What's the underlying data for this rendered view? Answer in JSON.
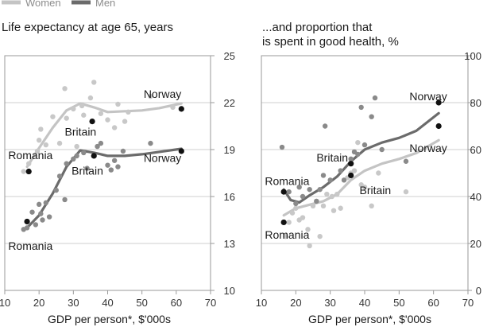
{
  "legend": [
    {
      "label": "Women",
      "color": "#c4c4c4"
    },
    {
      "label": "Men",
      "color": "#6b6b6b"
    }
  ],
  "colors": {
    "women_line": "#c4c4c4",
    "men_line": "#6b6b6b",
    "women_dot": "#c8c8c8",
    "men_dot": "#8a8a8a",
    "highlight_dot": "#111111",
    "grid": "#cfcfcf"
  },
  "chart_data": [
    {
      "type": "scatter",
      "title": "Life expectancy at age 65, years",
      "xlabel": "GDP per person*, $'000s",
      "ylabel": "",
      "xlim": [
        10,
        70
      ],
      "ylim": [
        10,
        25
      ],
      "x_ticks": [
        "10",
        "20",
        "30",
        "40",
        "50",
        "60",
        "70"
      ],
      "y_ticks": [
        "10",
        "13",
        "16",
        "19",
        "22",
        "25"
      ],
      "grid": true,
      "y_axis_side": "right",
      "series": [
        {
          "name": "Women",
          "color": "#c8c8c8",
          "points": [
            [
              15.5,
              17.6
            ],
            [
              17.0,
              18.1
            ],
            [
              19.5,
              18.9
            ],
            [
              20.0,
              19.6
            ],
            [
              20.5,
              20.3
            ],
            [
              22.0,
              19.3
            ],
            [
              24.0,
              21.1
            ],
            [
              26.0,
              19.4
            ],
            [
              27.5,
              22.9
            ],
            [
              28.0,
              21.0
            ],
            [
              30.0,
              21.6
            ],
            [
              31.0,
              19.2
            ],
            [
              32.5,
              21.8
            ],
            [
              33.0,
              21.2
            ],
            [
              35.0,
              22.3
            ],
            [
              36.0,
              23.3
            ],
            [
              38.0,
              21.3
            ],
            [
              40.0,
              20.9
            ],
            [
              42.0,
              20.4
            ],
            [
              43.0,
              21.9
            ],
            [
              45.0,
              20.8
            ],
            [
              46.0,
              21.4
            ],
            [
              52.5,
              22.4
            ],
            [
              59.0,
              21.7
            ]
          ],
          "trend": [
            [
              16.5,
              17.9
            ],
            [
              20,
              19.1
            ],
            [
              24,
              20.4
            ],
            [
              28,
              21.5
            ],
            [
              32,
              21.95
            ],
            [
              36,
              21.7
            ],
            [
              40,
              21.4
            ],
            [
              45,
              21.45
            ],
            [
              50,
              21.5
            ],
            [
              55,
              21.65
            ],
            [
              61.5,
              21.95
            ]
          ]
        },
        {
          "name": "Men",
          "color": "#8a8a8a",
          "points": [
            [
              15.5,
              13.9
            ],
            [
              16.5,
              14.0
            ],
            [
              18.0,
              15.0
            ],
            [
              19.0,
              14.2
            ],
            [
              20.0,
              15.5
            ],
            [
              20.5,
              14.9
            ],
            [
              21.0,
              14.5
            ],
            [
              22.0,
              15.6
            ],
            [
              23.0,
              14.7
            ],
            [
              25.0,
              16.4
            ],
            [
              26.0,
              17.3
            ],
            [
              27.5,
              15.8
            ],
            [
              28.0,
              18.1
            ],
            [
              30.0,
              18.4
            ],
            [
              31.0,
              18.6
            ],
            [
              33.0,
              18.8
            ],
            [
              34.0,
              17.8
            ],
            [
              36.0,
              18.6
            ],
            [
              37.0,
              19.2
            ],
            [
              38.0,
              19.4
            ],
            [
              40.0,
              18.0
            ],
            [
              41.0,
              17.7
            ],
            [
              42.0,
              18.3
            ],
            [
              43.0,
              17.9
            ],
            [
              44.5,
              18.9
            ],
            [
              52.5,
              19.4
            ]
          ],
          "trend": [
            [
              16.5,
              14.0
            ],
            [
              20,
              14.8
            ],
            [
              24,
              16.2
            ],
            [
              28,
              17.9
            ],
            [
              32,
              18.95
            ],
            [
              36,
              18.8
            ],
            [
              40,
              18.6
            ],
            [
              45,
              18.6
            ],
            [
              50,
              18.7
            ],
            [
              55,
              18.85
            ],
            [
              61.5,
              19.05
            ]
          ]
        }
      ],
      "highlighted": [
        {
          "label": "Norway",
          "series": "Women",
          "x": 61.5,
          "y": 21.6
        },
        {
          "label": "Britain",
          "series": "Women",
          "x": 35.5,
          "y": 20.8
        },
        {
          "label": "Romania",
          "series": "Women",
          "x": 17.0,
          "y": 17.6
        },
        {
          "label": "Norway",
          "series": "Men",
          "x": 61.5,
          "y": 18.9
        },
        {
          "label": "Britain",
          "series": "Men",
          "x": 36.0,
          "y": 18.6
        },
        {
          "label": "Romania",
          "series": "Men",
          "x": 16.5,
          "y": 14.4
        }
      ],
      "annotations": [
        {
          "text": "Norway",
          "x": 50.5,
          "y": 22.3
        },
        {
          "text": "Britain",
          "x": 27.5,
          "y": 19.9
        },
        {
          "text": "Romania",
          "x": 11.0,
          "y": 18.4
        },
        {
          "text": "Norway",
          "x": 50.5,
          "y": 18.2
        },
        {
          "text": "Britain",
          "x": 29.5,
          "y": 17.4
        },
        {
          "text": "Romania",
          "x": 11.0,
          "y": 12.6
        }
      ]
    },
    {
      "type": "scatter",
      "title": "...and proportion that\nis spent in good health, %",
      "xlabel": "GDP per person*, $'000s",
      "ylabel": "",
      "xlim": [
        10,
        70
      ],
      "ylim": [
        0,
        100
      ],
      "x_ticks": [
        "10",
        "20",
        "30",
        "40",
        "50",
        "60",
        "70"
      ],
      "y_ticks": [
        "0",
        "20",
        "40",
        "60",
        "80",
        "100"
      ],
      "grid": true,
      "y_axis_side": "right",
      "series": [
        {
          "name": "Women",
          "color": "#c8c8c8",
          "points": [
            [
              17.0,
              23.0
            ],
            [
              18.0,
              29.0
            ],
            [
              19.0,
              33.0
            ],
            [
              20.0,
              35.0
            ],
            [
              21.0,
              30.0
            ],
            [
              22.0,
              31.0
            ],
            [
              23.5,
              26.0
            ],
            [
              24.0,
              19.0
            ],
            [
              25.0,
              36.0
            ],
            [
              26.0,
              38.0
            ],
            [
              27.0,
              23.0
            ],
            [
              28.0,
              36.0
            ],
            [
              29.0,
              41.0
            ],
            [
              30.5,
              40.0
            ],
            [
              31.0,
              34.0
            ],
            [
              32.0,
              41.0
            ],
            [
              33.0,
              35.0
            ],
            [
              35.0,
              48.0
            ],
            [
              36.0,
              50.0
            ],
            [
              37.0,
              51.0
            ],
            [
              38.0,
              63.0
            ],
            [
              39.0,
              45.0
            ],
            [
              40.0,
              44.0
            ],
            [
              42.0,
              36.0
            ],
            [
              44.0,
              50.0
            ],
            [
              52.0,
              42.0
            ]
          ],
          "trend": [
            [
              16.5,
              32.0
            ],
            [
              20,
              35.0
            ],
            [
              24,
              36.5
            ],
            [
              28,
              38.0
            ],
            [
              32,
              41.0
            ],
            [
              36,
              47.0
            ],
            [
              40,
              51.0
            ],
            [
              45,
              54.0
            ],
            [
              50,
              56.0
            ],
            [
              55,
              58.5
            ],
            [
              61.5,
              64.0
            ]
          ]
        },
        {
          "name": "Men",
          "color": "#8a8a8a",
          "points": [
            [
              16.0,
              61.0
            ],
            [
              18.0,
              42.0
            ],
            [
              20.0,
              37.0
            ],
            [
              21.0,
              44.0
            ],
            [
              22.0,
              40.0
            ],
            [
              24.0,
              43.0
            ],
            [
              26.0,
              38.0
            ],
            [
              27.0,
              43.0
            ],
            [
              28.0,
              49.0
            ],
            [
              28.5,
              70.0
            ],
            [
              30.0,
              47.0
            ],
            [
              33.0,
              51.0
            ],
            [
              34.0,
              47.0
            ],
            [
              36.0,
              56.0
            ],
            [
              37.0,
              59.0
            ],
            [
              38.0,
              58.0
            ],
            [
              39.0,
              78.0
            ],
            [
              40.0,
              62.0
            ],
            [
              42.0,
              74.0
            ],
            [
              43.0,
              82.0
            ],
            [
              45.0,
              60.0
            ],
            [
              52.0,
              55.0
            ]
          ],
          "trend": [
            [
              16.5,
              43.0
            ],
            [
              18.5,
              38.5
            ],
            [
              21,
              37.5
            ],
            [
              24,
              40.5
            ],
            [
              28,
              44.0
            ],
            [
              32,
              48.5
            ],
            [
              36,
              55.0
            ],
            [
              40,
              60.0
            ],
            [
              45,
              63.0
            ],
            [
              50,
              65.0
            ],
            [
              55,
              68.0
            ],
            [
              61.5,
              75.5
            ]
          ]
        }
      ],
      "highlighted": [
        {
          "label": "Norway",
          "series": "Women",
          "x": 61.5,
          "y": 70.0
        },
        {
          "label": "Britain",
          "series": "Women",
          "x": 36.0,
          "y": 49.0
        },
        {
          "label": "Romania",
          "series": "Women",
          "x": 16.5,
          "y": 29.0
        },
        {
          "label": "Norway",
          "series": "Men",
          "x": 61.5,
          "y": 80.0
        },
        {
          "label": "Britain",
          "series": "Men",
          "x": 36.0,
          "y": 54.0
        },
        {
          "label": "Romania",
          "series": "Men",
          "x": 16.5,
          "y": 42.0
        }
      ],
      "annotations": [
        {
          "text": "Norway",
          "x": 53.0,
          "y": 81.0
        },
        {
          "text": "Norway",
          "x": 53.0,
          "y": 59.0
        },
        {
          "text": "Britain",
          "x": 26.0,
          "y": 55.0
        },
        {
          "text": "Romania",
          "x": 11.0,
          "y": 45.0
        },
        {
          "text": "Britain",
          "x": 38.5,
          "y": 41.0
        },
        {
          "text": "Romania",
          "x": 11.0,
          "y": 22.0
        }
      ]
    }
  ]
}
